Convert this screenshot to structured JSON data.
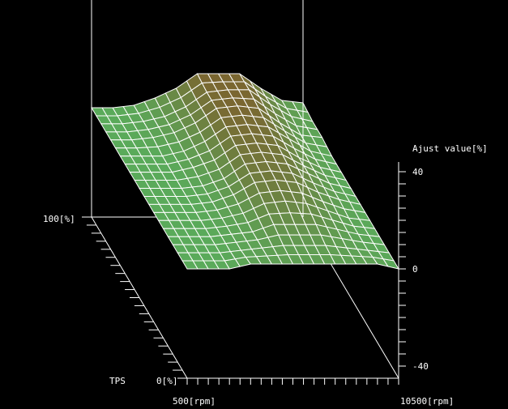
{
  "chart_data": {
    "type": "surface3d",
    "zlabel": "Ajust value[%]",
    "ylabel": "TPS",
    "x_min_label": "500[rpm]",
    "x_max_label": "10500[rpm]",
    "y_min_label": "0[%]",
    "y_max_label": "100[%]",
    "z_tick_labels": [
      "40",
      "0",
      "-40"
    ],
    "xlim": [
      500,
      10500
    ],
    "ylim": [
      0,
      100
    ],
    "zlim": [
      -45,
      40
    ],
    "z_ticks": [
      40,
      0,
      -40
    ],
    "rpm": [
      500,
      1500,
      2500,
      3500,
      4500,
      5500,
      6500,
      7500,
      8500,
      9500,
      10500
    ],
    "tps": [
      0,
      10,
      20,
      30,
      40,
      50,
      60,
      70,
      80,
      90,
      100
    ],
    "z": [
      [
        0,
        0,
        0,
        2,
        2,
        2,
        2,
        2,
        2,
        2,
        0
      ],
      [
        0,
        0,
        0,
        1,
        2,
        3,
        3,
        3,
        2,
        1,
        0
      ],
      [
        0,
        0,
        0,
        1,
        2,
        5,
        5,
        5,
        3,
        1,
        0
      ],
      [
        0,
        0,
        0,
        1,
        3,
        7,
        8,
        7,
        4,
        1,
        0
      ],
      [
        0,
        0,
        0,
        1,
        4,
        9,
        10,
        9,
        5,
        2,
        0
      ],
      [
        0,
        0,
        0,
        1,
        4,
        10,
        11,
        10,
        6,
        2,
        0
      ],
      [
        0,
        0,
        0,
        2,
        5,
        11,
        12,
        11,
        6,
        2,
        0
      ],
      [
        0,
        0,
        0,
        2,
        6,
        12,
        13,
        12,
        7,
        2,
        0
      ],
      [
        0,
        0,
        1,
        3,
        7,
        13,
        14,
        13,
        7,
        2,
        1
      ],
      [
        0,
        0,
        1,
        3,
        7,
        13,
        14,
        14,
        8,
        3,
        1
      ],
      [
        0,
        0,
        1,
        4,
        8,
        14,
        14,
        14,
        8,
        3,
        2
      ]
    ],
    "colors": {
      "low": "#5aaa5a",
      "high": "#7a6630",
      "grid": "#ffffff",
      "background": "#000000"
    }
  }
}
